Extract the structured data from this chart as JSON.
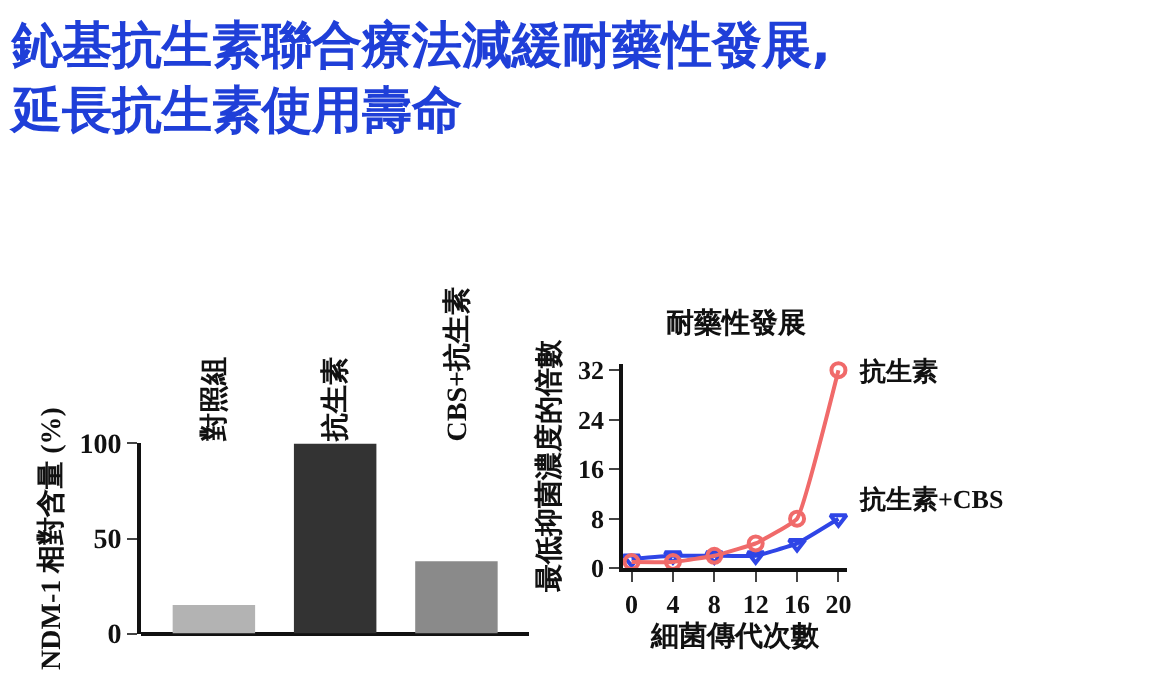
{
  "chart_data": [
    {
      "type": "bar",
      "title": "鈊基抗生素聯合療法減緩耐藥性發展,\n延長抗生素使用壽命",
      "ylabel": "NDM-1 相對含量 (%)",
      "categories": [
        "對照組",
        "抗生素",
        "CBS+抗生素"
      ],
      "values": [
        15,
        100,
        38
      ],
      "colors": [
        "#b3b3b3",
        "#333333",
        "#8a8a8a"
      ],
      "ylim": [
        0,
        100
      ],
      "yticks": [
        0,
        50,
        100
      ],
      "legend": false
    },
    {
      "type": "line",
      "title": "耐藥性發展",
      "xlabel": "細菌傳代次數",
      "ylabel": "最低抑菌濃度的倍數",
      "x": [
        0,
        4,
        8,
        12,
        16,
        20
      ],
      "xlim": [
        -0.8,
        20.8
      ],
      "xticks": [
        0,
        4,
        8,
        12,
        16,
        20
      ],
      "ylim": [
        0,
        33
      ],
      "yticks": [
        0,
        8,
        16,
        24,
        32
      ],
      "legend": false,
      "line_style": "solid",
      "series": [
        {
          "name": "抗生素",
          "color": "#f06a6a",
          "marker": "circle",
          "values": [
            1,
            1,
            2,
            4,
            8,
            32
          ]
        },
        {
          "name": "抗生素+CBS",
          "color": "#2f45e6",
          "marker": "triangle",
          "values": [
            1.5,
            2,
            2,
            2,
            4,
            8
          ]
        }
      ]
    }
  ]
}
